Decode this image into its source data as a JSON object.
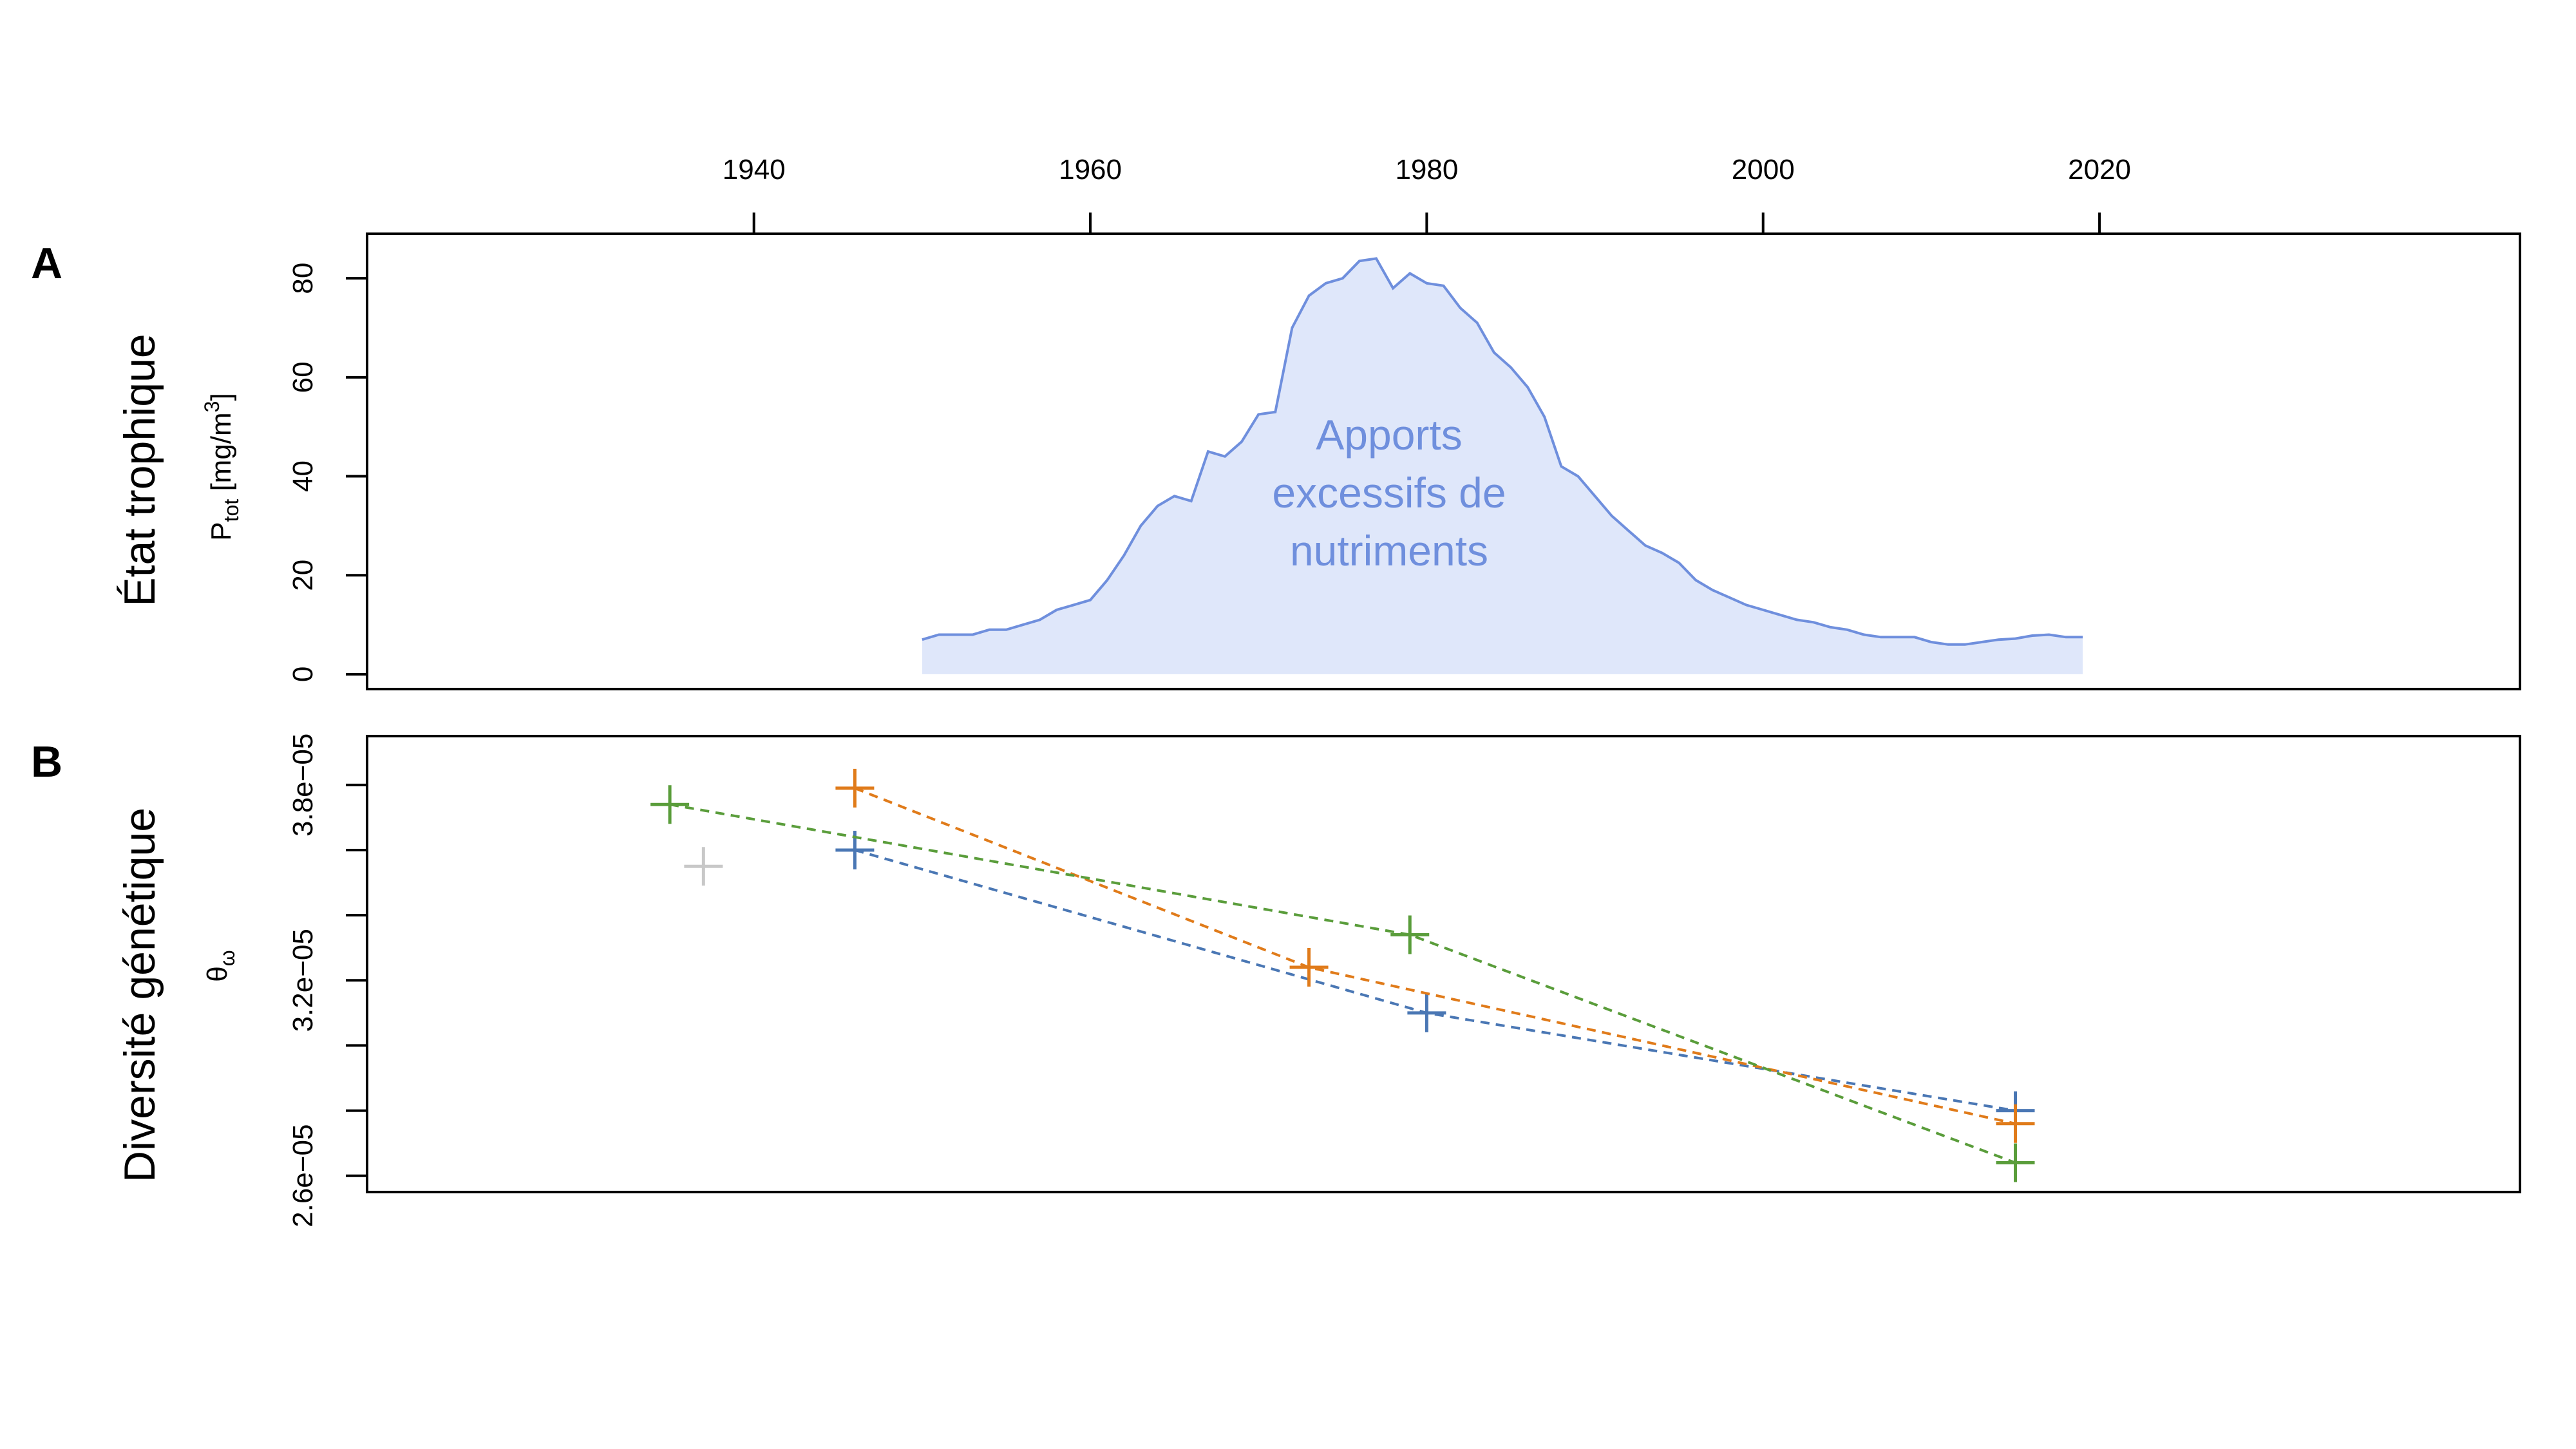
{
  "chart_data": [
    {
      "panel": "A",
      "type": "area",
      "ylabel": "État trophique",
      "unit_label": {
        "base": "P",
        "sub": "tot",
        "unit": "[mg/m",
        "sup": "3",
        "close": "]"
      },
      "annotation": [
        "Apports",
        "excessifs de",
        "nutriments"
      ],
      "xlim": [
        1917,
        2045
      ],
      "ylim": [
        -3,
        89
      ],
      "x_ticks": [
        1940,
        1960,
        1980,
        2000,
        2020
      ],
      "y_ticks": [
        0,
        20,
        40,
        60,
        80
      ],
      "colors": {
        "line": "#6f8fdd",
        "fill": "#dfe7fa"
      },
      "x": [
        1950,
        1951,
        1952,
        1953,
        1954,
        1955,
        1956,
        1957,
        1958,
        1959,
        1960,
        1961,
        1962,
        1963,
        1964,
        1965,
        1966,
        1967,
        1968,
        1969,
        1970,
        1971,
        1972,
        1973,
        1974,
        1975,
        1976,
        1977,
        1978,
        1979,
        1980,
        1981,
        1982,
        1983,
        1984,
        1985,
        1986,
        1987,
        1988,
        1989,
        1990,
        1991,
        1992,
        1993,
        1994,
        1995,
        1996,
        1997,
        1998,
        1999,
        2000,
        2001,
        2002,
        2003,
        2004,
        2005,
        2006,
        2007,
        2008,
        2009,
        2010,
        2011,
        2012,
        2013,
        2014,
        2015,
        2016,
        2017,
        2018,
        2019
      ],
      "y": [
        7,
        8,
        8,
        8,
        9,
        9,
        10,
        11,
        13,
        14,
        15,
        19,
        24,
        30,
        34,
        36,
        35,
        45,
        44,
        47,
        52.5,
        53,
        70,
        76.5,
        79,
        80,
        83.5,
        84,
        78,
        81,
        79,
        78.5,
        74,
        71,
        65,
        62,
        58,
        52,
        42,
        40,
        36,
        32,
        29,
        26,
        24.5,
        22.5,
        19,
        17,
        15.5,
        14,
        13,
        12,
        11,
        10.5,
        9.5,
        9,
        8,
        7.5,
        7.5,
        7.5,
        6.5,
        6,
        6,
        6.5,
        7,
        7.2,
        7.8,
        8,
        7.5,
        7.5
      ]
    },
    {
      "panel": "B",
      "type": "scatter",
      "ylabel": "Diversité génétique",
      "unit_label": {
        "base": "θ",
        "sub": "ω"
      },
      "ylim": [
        2.55e-05,
        3.95e-05
      ],
      "y_ticks": [
        2.6e-05,
        2.8e-05,
        3e-05,
        3.2e-05,
        3.4e-05,
        3.6e-05,
        3.8e-05
      ],
      "y_tick_labels": [
        "2.6e−05",
        "",
        "",
        "3.2e−05",
        "",
        "",
        "3.8e−05"
      ],
      "series": [
        {
          "color": "#4a77b4",
          "dashed": true,
          "points": [
            {
              "x": 1946,
              "y": 3.6e-05
            },
            {
              "x": 1980,
              "y": 3.1e-05
            },
            {
              "x": 2015,
              "y": 2.8e-05
            }
          ]
        },
        {
          "color": "#e07b1a",
          "dashed": true,
          "points": [
            {
              "x": 1946,
              "y": 3.79e-05
            },
            {
              "x": 1973,
              "y": 3.24e-05
            },
            {
              "x": 2015,
              "y": 2.76e-05
            }
          ]
        },
        {
          "color": "#5a9d3b",
          "dashed": true,
          "points": [
            {
              "x": 1935,
              "y": 3.74e-05
            },
            {
              "x": 1979,
              "y": 3.34e-05
            },
            {
              "x": 2015,
              "y": 2.64e-05
            }
          ]
        },
        {
          "color": "#c8c8c8",
          "dashed": false,
          "points": [
            {
              "x": 1937,
              "y": 3.55e-05
            }
          ]
        }
      ]
    }
  ]
}
